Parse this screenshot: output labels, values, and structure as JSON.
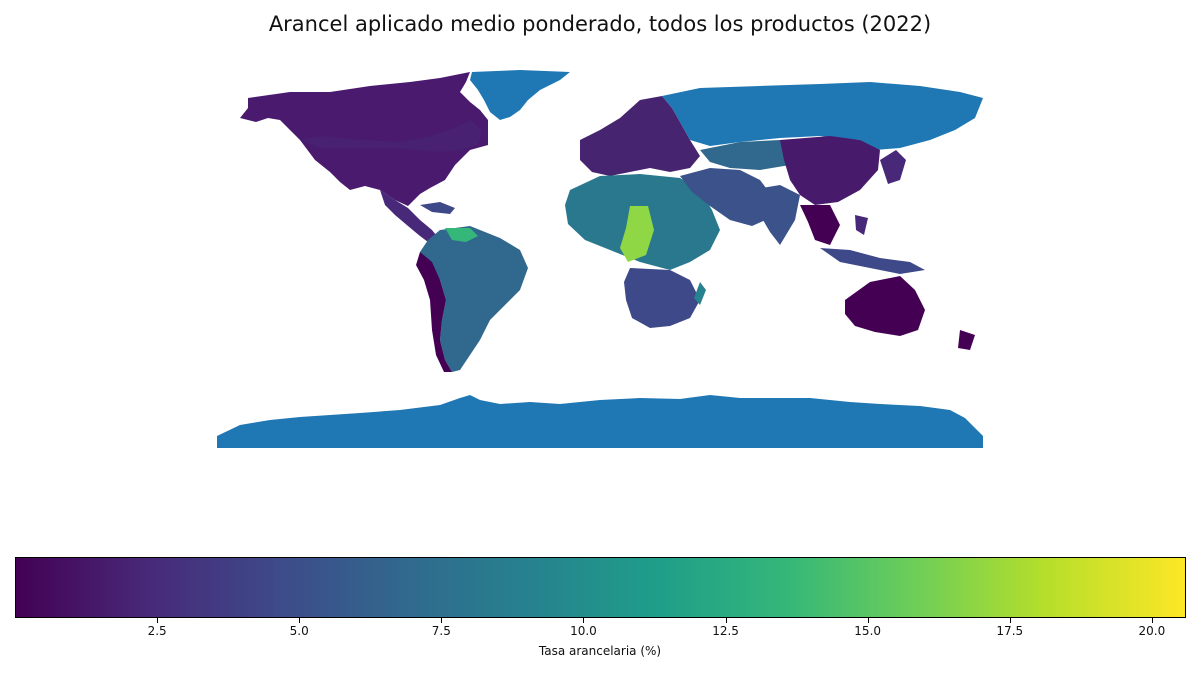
{
  "title": "Arancel aplicado medio ponderado, todos los productos (2022)",
  "colorbar": {
    "label": "Tasa arancelaria (%)",
    "ticks": [
      "2.5",
      "5.0",
      "7.5",
      "10.0",
      "12.5",
      "15.0",
      "17.5",
      "20.0"
    ],
    "range": [
      0,
      20.6
    ],
    "colormap": "viridis",
    "no_data_color": "#1f77b4"
  },
  "colors": {
    "no_data": "#1f77b4",
    "low": "#440154",
    "high": "#fde725"
  }
}
